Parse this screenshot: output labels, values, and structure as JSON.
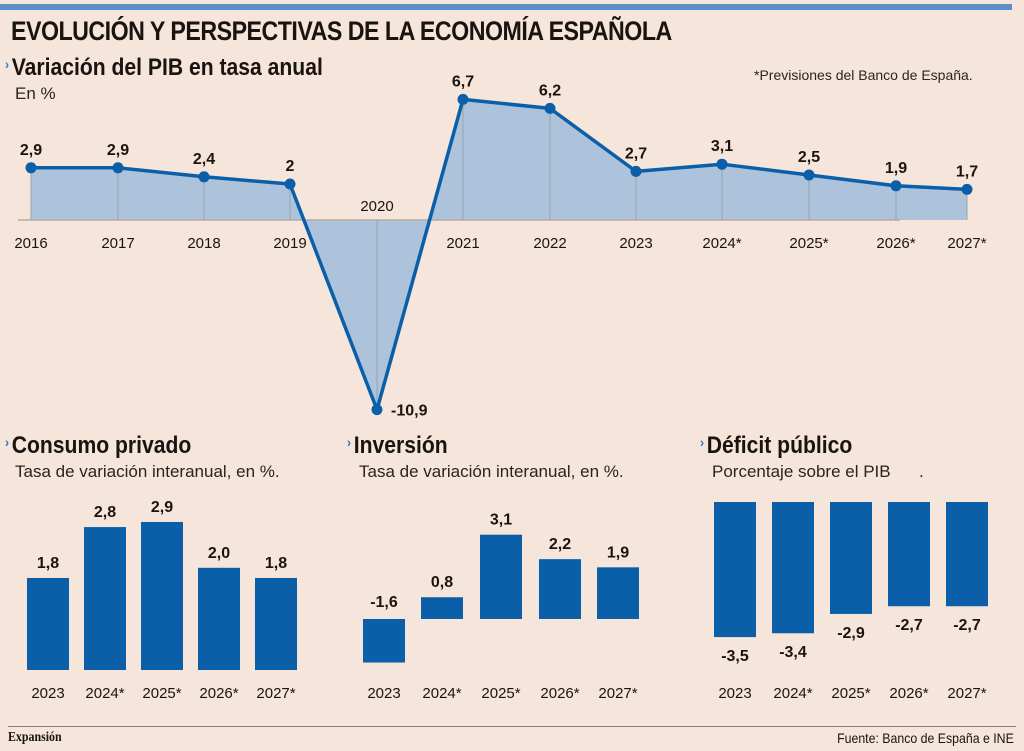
{
  "header": {
    "title": "EVOLUCIÓN Y PERSPECTIVAS DE LA ECONOMÍA ESPAÑOLA",
    "chevron_icon": "›"
  },
  "footnote": "*Previsiones del Banco de España.",
  "footer": {
    "brand": "Expansión",
    "source": "Fuente: Banco de España e INE"
  },
  "colors": {
    "background": "#f5e5da",
    "accent_stripe": "#5b8fc6",
    "bar_blue": "#0a5fa8",
    "line_blue": "#0a5fa8",
    "area_fill": "#adc3db",
    "chevron": "#2a77c0"
  },
  "chart_data": [
    {
      "type": "area",
      "title": "Variación del PIB en tasa anual",
      "subtitle": "En %",
      "xlabel": "",
      "ylabel": "",
      "categories": [
        "2016",
        "2017",
        "2018",
        "2019",
        "2020",
        "2021",
        "2022",
        "2023",
        "2024*",
        "2025*",
        "2026*",
        "2027*"
      ],
      "values": [
        2.9,
        2.9,
        2.4,
        2,
        -10.9,
        6.7,
        6.2,
        2.7,
        3.1,
        2.5,
        1.9,
        1.7
      ],
      "labels": [
        "2,9",
        "2,9",
        "2,4",
        "2",
        "-10,9",
        "6,7",
        "6,2",
        "2,7",
        "3,1",
        "2,5",
        "1,9",
        "1,7"
      ],
      "ylim": [
        -10.9,
        6.7
      ],
      "grid": false,
      "annotation": "*Previsiones del Banco de España."
    },
    {
      "type": "bar",
      "title": "Consumo privado",
      "subtitle": "Tasa de variación interanual, en %.",
      "categories": [
        "2023",
        "2024*",
        "2025*",
        "2026*",
        "2027*"
      ],
      "values": [
        1.8,
        2.8,
        2.9,
        2.0,
        1.8
      ],
      "labels": [
        "1,8",
        "2,8",
        "2,9",
        "2,0",
        "1,8"
      ]
    },
    {
      "type": "bar",
      "title": "Inversión",
      "subtitle": "Tasa de variación interanual, en %.",
      "categories": [
        "2023",
        "2024*",
        "2025*",
        "2026*",
        "2027*"
      ],
      "values": [
        -1.6,
        0.8,
        3.1,
        2.2,
        1.9
      ],
      "labels": [
        "-1,6",
        "0,8",
        "3,1",
        "2,2",
        "1,9"
      ]
    },
    {
      "type": "bar",
      "title": "Déficit público",
      "subtitle": "Porcentaje sobre el PIB      .",
      "categories": [
        "2023",
        "2024*",
        "2025*",
        "2026*",
        "2027*"
      ],
      "values": [
        -3.5,
        -3.4,
        -2.9,
        -2.7,
        -2.7
      ],
      "labels": [
        "-3,5",
        "-3,4",
        "-2,9",
        "-2,7",
        "-2,7"
      ]
    }
  ]
}
